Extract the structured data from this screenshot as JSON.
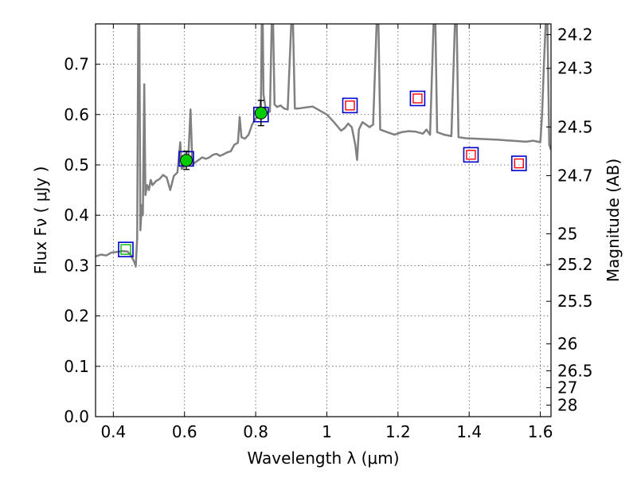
{
  "chart_data": {
    "type": "scatter",
    "title": "",
    "xlabel": "Wavelength  λ (μm)",
    "ylabel": "Flux  Fν  ( μJy )",
    "ylabel_right": "Magnitude (AB)",
    "xlim": [
      0.35,
      1.63
    ],
    "ylim": [
      0.0,
      0.78
    ],
    "grid": true,
    "x_ticks": [
      0.4,
      0.6,
      0.8,
      1.0,
      1.2,
      1.4,
      1.6
    ],
    "x_tick_labels": [
      "0.4",
      "0.6",
      "0.8",
      "1",
      "1.2",
      "1.4",
      "1.6"
    ],
    "y_ticks": [
      0.0,
      0.1,
      0.2,
      0.3,
      0.4,
      0.5,
      0.6,
      0.7
    ],
    "y_tick_labels": [
      "0.0",
      "0.1",
      "0.2",
      "0.3",
      "0.4",
      "0.5",
      "0.6",
      "0.7"
    ],
    "right_ticks": [
      {
        "label": "24.2",
        "flux": 0.7586
      },
      {
        "label": "24.3",
        "flux": 0.6918
      },
      {
        "label": "24.5",
        "flux": 0.5754
      },
      {
        "label": "24.7",
        "flux": 0.4786
      },
      {
        "label": "25",
        "flux": 0.3631
      },
      {
        "label": "25.2",
        "flux": 0.302
      },
      {
        "label": "25.5",
        "flux": 0.2291
      },
      {
        "label": "26",
        "flux": 0.1445
      },
      {
        "label": "26.5",
        "flux": 0.0912
      },
      {
        "label": "27",
        "flux": 0.0575
      },
      {
        "label": "28",
        "flux": 0.0229
      }
    ],
    "colors": {
      "sed": "#808080",
      "model_square": "#0000cc",
      "obs_red": "#ff0000",
      "obs_green": "#00bb00",
      "obs_point": "#00cc00",
      "error_bar": "#000000"
    },
    "series": [
      {
        "name": "sed_model_spectrum",
        "style": "line",
        "points": [
          [
            0.35,
            0.318
          ],
          [
            0.365,
            0.322
          ],
          [
            0.38,
            0.32
          ],
          [
            0.395,
            0.326
          ],
          [
            0.41,
            0.327
          ],
          [
            0.425,
            0.329
          ],
          [
            0.44,
            0.328
          ],
          [
            0.45,
            0.32
          ],
          [
            0.46,
            0.305
          ],
          [
            0.463,
            0.298
          ],
          [
            0.467,
            0.355
          ],
          [
            0.47,
            0.78
          ],
          [
            0.473,
            0.78
          ],
          [
            0.476,
            0.37
          ],
          [
            0.48,
            0.42
          ],
          [
            0.483,
            0.4
          ],
          [
            0.487,
            0.66
          ],
          [
            0.49,
            0.44
          ],
          [
            0.495,
            0.46
          ],
          [
            0.5,
            0.45
          ],
          [
            0.505,
            0.47
          ],
          [
            0.51,
            0.46
          ],
          [
            0.52,
            0.468
          ],
          [
            0.53,
            0.472
          ],
          [
            0.54,
            0.48
          ],
          [
            0.55,
            0.475
          ],
          [
            0.56,
            0.45
          ],
          [
            0.57,
            0.478
          ],
          [
            0.58,
            0.485
          ],
          [
            0.588,
            0.545
          ],
          [
            0.592,
            0.492
          ],
          [
            0.6,
            0.498
          ],
          [
            0.61,
            0.505
          ],
          [
            0.617,
            0.61
          ],
          [
            0.622,
            0.5
          ],
          [
            0.63,
            0.505
          ],
          [
            0.64,
            0.51
          ],
          [
            0.65,
            0.515
          ],
          [
            0.66,
            0.512
          ],
          [
            0.67,
            0.515
          ],
          [
            0.68,
            0.52
          ],
          [
            0.69,
            0.522
          ],
          [
            0.7,
            0.518
          ],
          [
            0.71,
            0.521
          ],
          [
            0.72,
            0.525
          ],
          [
            0.73,
            0.527
          ],
          [
            0.74,
            0.54
          ],
          [
            0.75,
            0.544
          ],
          [
            0.755,
            0.595
          ],
          [
            0.76,
            0.555
          ],
          [
            0.77,
            0.552
          ],
          [
            0.78,
            0.56
          ],
          [
            0.79,
            0.58
          ],
          [
            0.8,
            0.592
          ],
          [
            0.81,
            0.596
          ],
          [
            0.815,
            0.635
          ],
          [
            0.817,
            0.78
          ],
          [
            0.82,
            0.78
          ],
          [
            0.822,
            0.64
          ],
          [
            0.83,
            0.603
          ],
          [
            0.84,
            0.606
          ],
          [
            0.845,
            0.78
          ],
          [
            0.849,
            0.78
          ],
          [
            0.853,
            0.62
          ],
          [
            0.86,
            0.615
          ],
          [
            0.87,
            0.618
          ],
          [
            0.88,
            0.612
          ],
          [
            0.89,
            0.61
          ],
          [
            0.9,
            0.78
          ],
          [
            0.905,
            0.78
          ],
          [
            0.91,
            0.612
          ],
          [
            0.92,
            0.612
          ],
          [
            0.94,
            0.614
          ],
          [
            0.96,
            0.616
          ],
          [
            0.98,
            0.608
          ],
          [
            1.0,
            0.6
          ],
          [
            1.02,
            0.585
          ],
          [
            1.04,
            0.568
          ],
          [
            1.05,
            0.573
          ],
          [
            1.06,
            0.582
          ],
          [
            1.07,
            0.575
          ],
          [
            1.08,
            0.54
          ],
          [
            1.085,
            0.51
          ],
          [
            1.09,
            0.57
          ],
          [
            1.1,
            0.585
          ],
          [
            1.11,
            0.58
          ],
          [
            1.12,
            0.575
          ],
          [
            1.13,
            0.58
          ],
          [
            1.14,
            0.78
          ],
          [
            1.145,
            0.78
          ],
          [
            1.15,
            0.57
          ],
          [
            1.17,
            0.565
          ],
          [
            1.19,
            0.56
          ],
          [
            1.21,
            0.565
          ],
          [
            1.23,
            0.567
          ],
          [
            1.25,
            0.566
          ],
          [
            1.27,
            0.562
          ],
          [
            1.28,
            0.57
          ],
          [
            1.29,
            0.56
          ],
          [
            1.3,
            0.78
          ],
          [
            1.305,
            0.78
          ],
          [
            1.31,
            0.565
          ],
          [
            1.33,
            0.56
          ],
          [
            1.35,
            0.557
          ],
          [
            1.36,
            0.78
          ],
          [
            1.365,
            0.78
          ],
          [
            1.37,
            0.555
          ],
          [
            1.39,
            0.553
          ],
          [
            1.42,
            0.552
          ],
          [
            1.45,
            0.551
          ],
          [
            1.48,
            0.55
          ],
          [
            1.5,
            0.549
          ],
          [
            1.52,
            0.548
          ],
          [
            1.54,
            0.547
          ],
          [
            1.56,
            0.546
          ],
          [
            1.58,
            0.548
          ],
          [
            1.6,
            0.545
          ],
          [
            1.605,
            0.6
          ],
          [
            1.61,
            0.7
          ],
          [
            1.615,
            0.78
          ],
          [
            1.62,
            0.78
          ],
          [
            1.625,
            0.54
          ],
          [
            1.63,
            0.53
          ]
        ]
      },
      {
        "name": "model_photometry",
        "style": "open_square_blue",
        "points": [
          [
            0.435,
            0.332
          ],
          [
            0.605,
            0.512
          ],
          [
            0.815,
            0.6
          ],
          [
            1.065,
            0.618
          ],
          [
            1.255,
            0.632
          ],
          [
            1.405,
            0.52
          ],
          [
            1.54,
            0.503
          ]
        ]
      },
      {
        "name": "observed_upper_limits",
        "style": "open_square_red",
        "points": [
          [
            1.065,
            0.618
          ],
          [
            1.255,
            0.632
          ],
          [
            1.405,
            0.52
          ],
          [
            1.54,
            0.503
          ]
        ]
      },
      {
        "name": "observed_faint",
        "style": "open_square_green",
        "points": [
          [
            0.435,
            0.332
          ]
        ]
      },
      {
        "name": "observed_detections",
        "style": "filled_circle_green",
        "points": [
          {
            "x": 0.605,
            "y": 0.509,
            "err": 0.018
          },
          {
            "x": 0.815,
            "y": 0.603,
            "err": 0.025
          }
        ]
      }
    ]
  }
}
